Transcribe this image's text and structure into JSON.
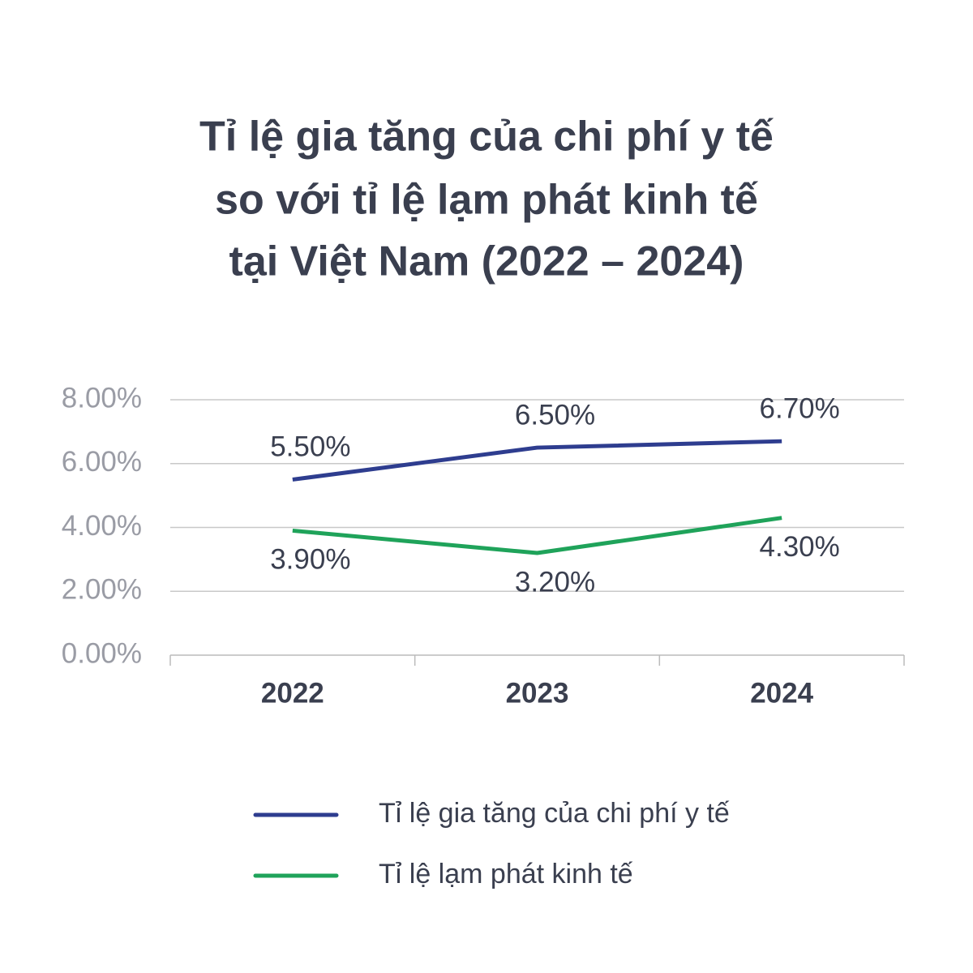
{
  "chart_data": {
    "type": "line",
    "title": [
      "Tỉ lệ gia tăng của chi phí y tế",
      "so với tỉ lệ lạm phát kinh tế",
      "tại Việt Nam (2022 – 2024)"
    ],
    "categories": [
      "2022",
      "2023",
      "2024"
    ],
    "series": [
      {
        "name": "Tỉ lệ gia tăng của chi phí y tế",
        "color": "#2e3d8f",
        "values": [
          5.5,
          6.5,
          6.7
        ],
        "value_labels": [
          "5.50%",
          "6.50%",
          "6.70%"
        ]
      },
      {
        "name": "Tỉ lệ lạm phát kinh tế",
        "color": "#1fa35a",
        "values": [
          3.9,
          3.2,
          4.3
        ],
        "value_labels": [
          "3.90%",
          "3.20%",
          "4.30%"
        ]
      }
    ],
    "ylim": [
      0,
      8
    ],
    "yticks": [
      {
        "value": 0,
        "label": "0.00%"
      },
      {
        "value": 2,
        "label": "2.00%"
      },
      {
        "value": 4,
        "label": "4.00%"
      },
      {
        "value": 6,
        "label": "6.00%"
      },
      {
        "value": 8,
        "label": "8.00%"
      }
    ],
    "grid": true
  }
}
